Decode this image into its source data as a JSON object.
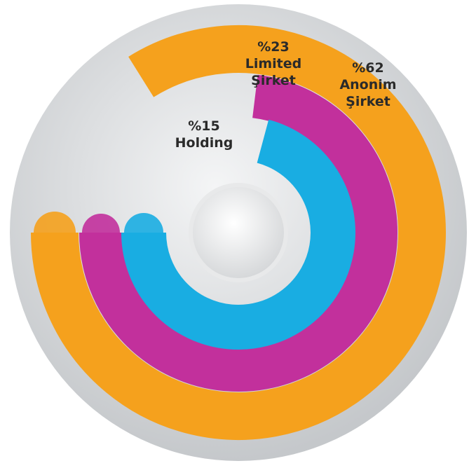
{
  "chart_data": {
    "type": "radial-bar",
    "categories": [
      "Holding",
      "Limited Şirket",
      "Anonim Şirket"
    ],
    "values": [
      15,
      23,
      62
    ],
    "value_labels": [
      "%15",
      "%23",
      "%62"
    ],
    "colors": [
      "#19ade2",
      "#c2309c",
      "#f5a11d"
    ]
  }
}
